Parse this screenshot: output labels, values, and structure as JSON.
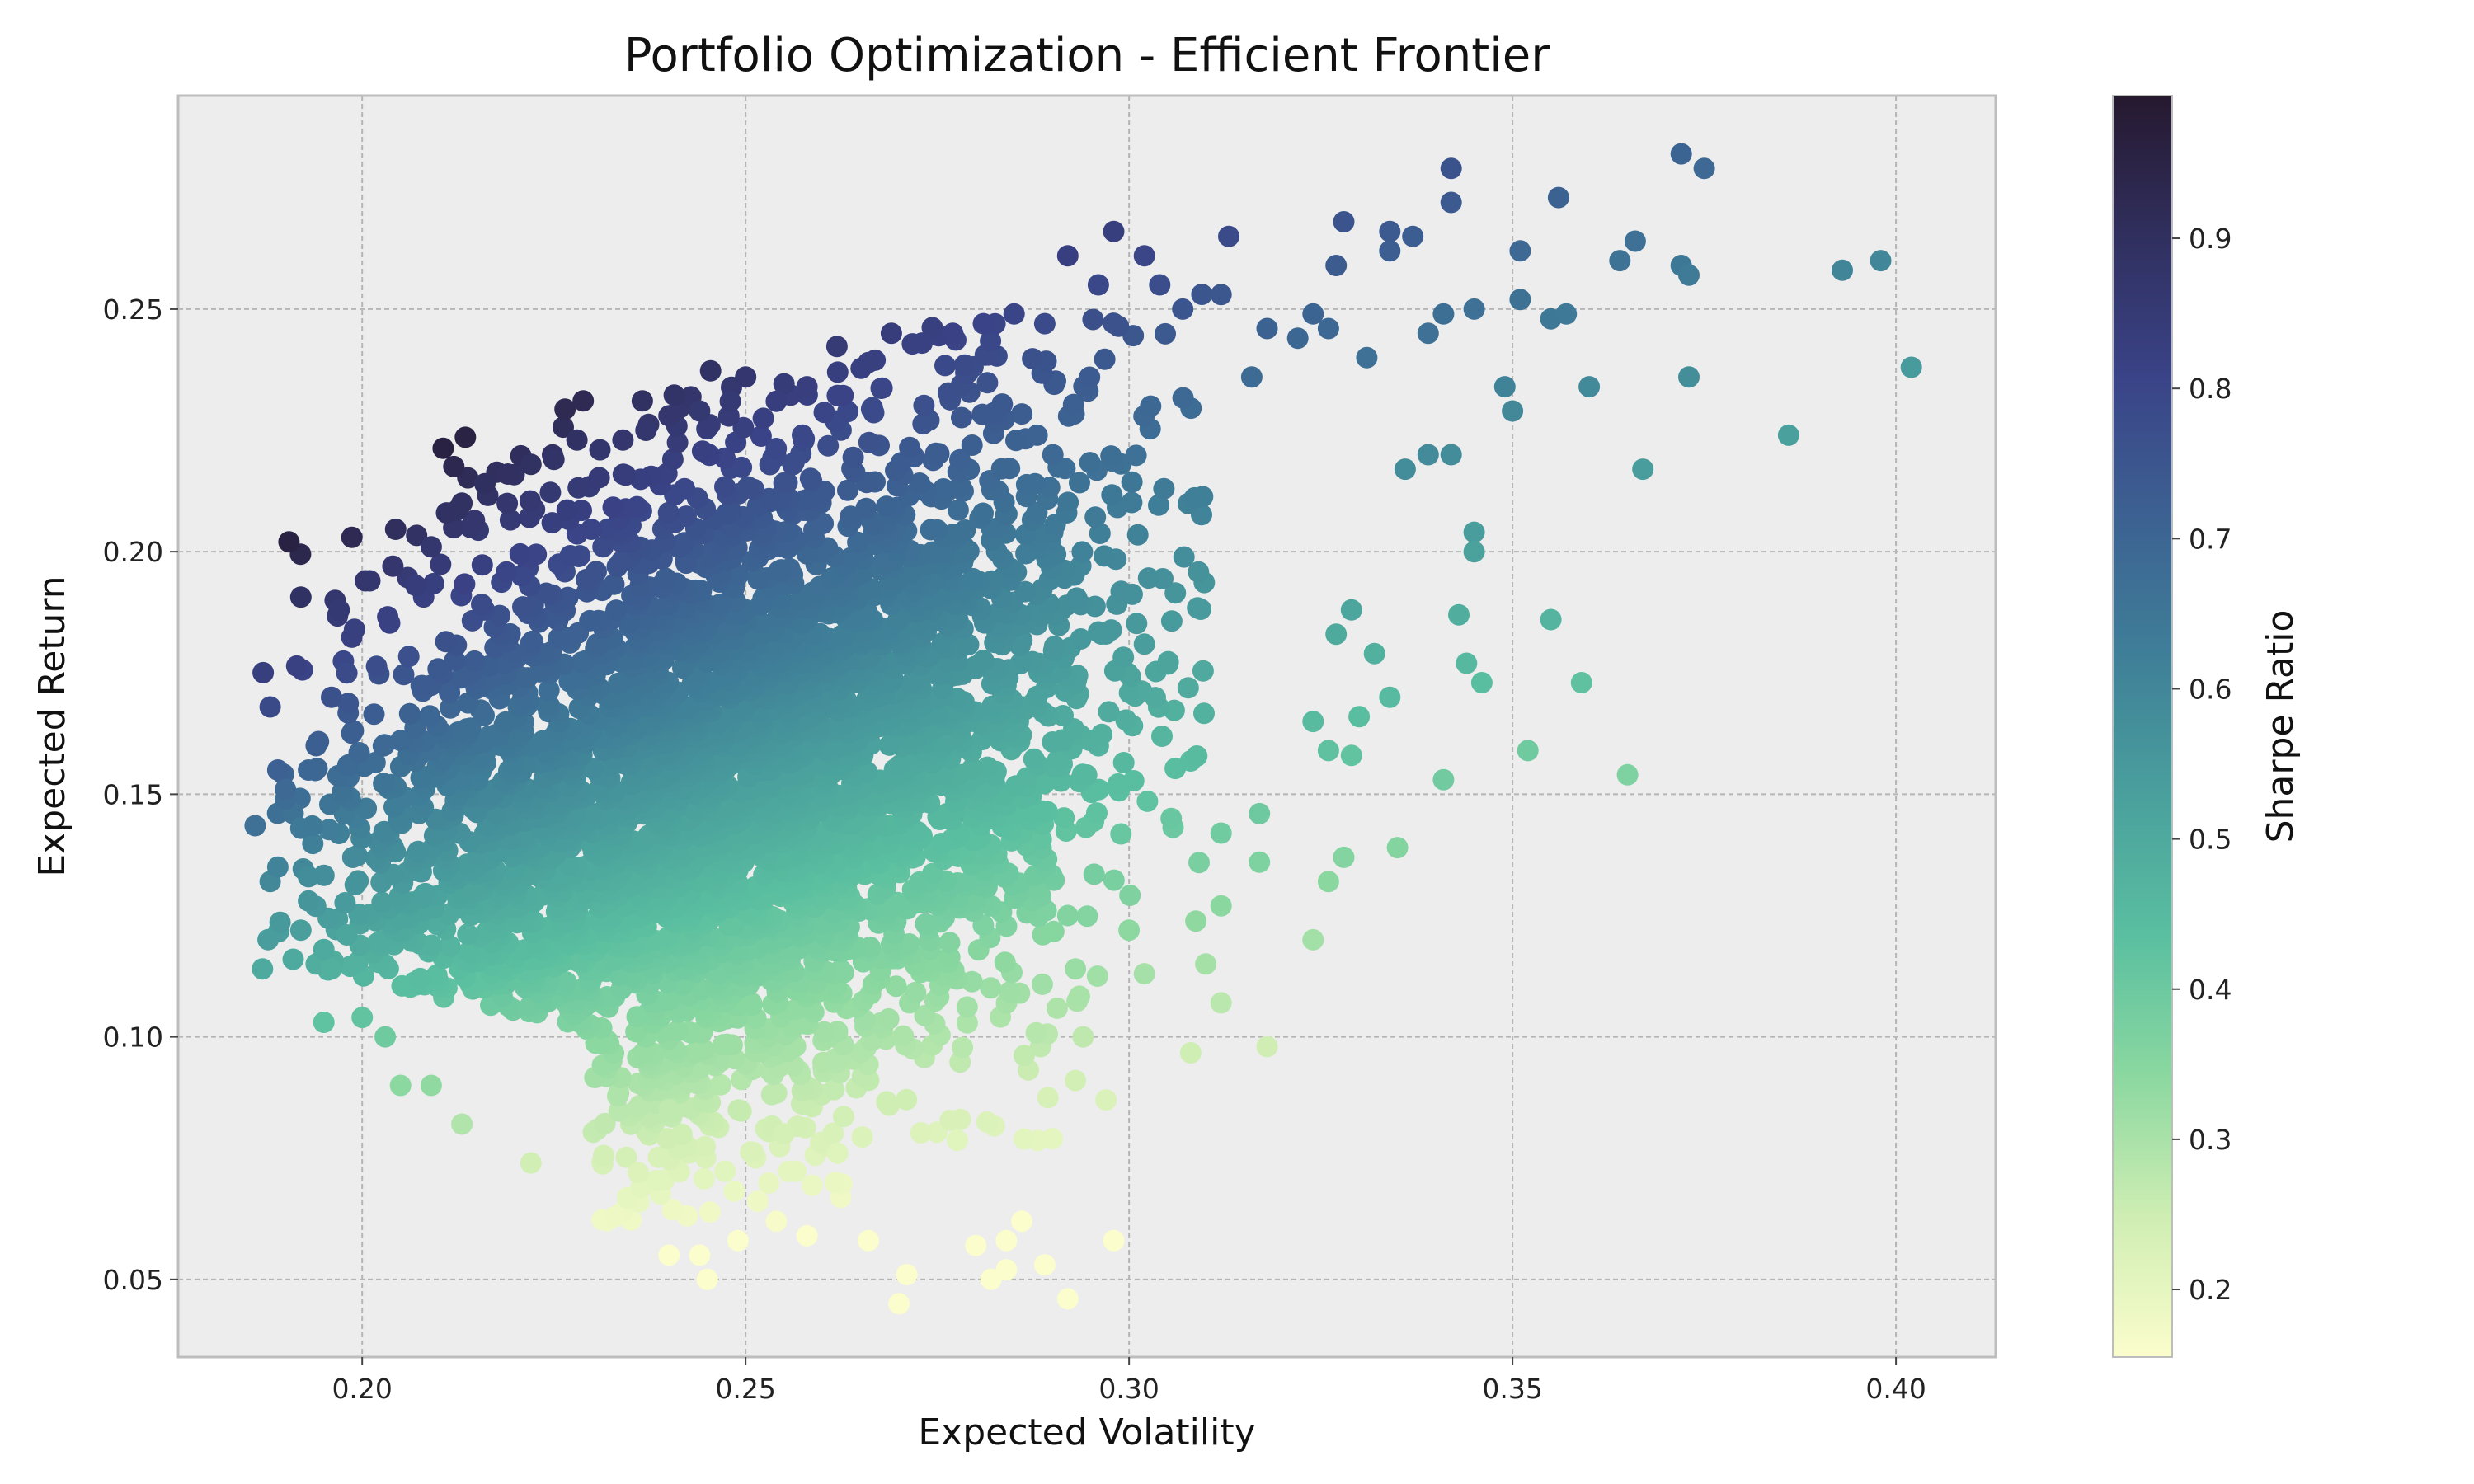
{
  "chart_data": {
    "type": "scatter",
    "title": "Portfolio Optimization - Efficient Frontier",
    "xlabel": "Expected Volatility",
    "ylabel": "Expected Return",
    "xlim": [
      0.176,
      0.413
    ],
    "ylim": [
      0.034,
      0.294
    ],
    "xticks": [
      0.2,
      0.25,
      0.3,
      0.35,
      0.4
    ],
    "xtick_labels": [
      "0.20",
      "0.25",
      "0.30",
      "0.35",
      "0.40"
    ],
    "yticks": [
      0.05,
      0.1,
      0.15,
      0.2,
      0.25
    ],
    "ytick_labels": [
      "0.05",
      "0.10",
      "0.15",
      "0.20",
      "0.25"
    ],
    "grid": true,
    "colorbar": {
      "label": "Sharpe Ratio",
      "range": [
        0.155,
        0.995
      ],
      "ticks": [
        0.2,
        0.3,
        0.4,
        0.5,
        0.6,
        0.7,
        0.8,
        0.9
      ],
      "tick_labels": [
        "0.2",
        "0.3",
        "0.4",
        "0.5",
        "0.6",
        "0.7",
        "0.8",
        "0.9"
      ],
      "colormap_stops": [
        "#fbfdcc",
        "#cfeeb3",
        "#8bd8a0",
        "#5abfa0",
        "#4aa09d",
        "#3f7f98",
        "#3c6192",
        "#3a4387",
        "#302f5e",
        "#26192f"
      ]
    },
    "series": [
      {
        "values": [
          [
            0.187,
            0.114
          ],
          [
            0.188,
            0.132
          ],
          [
            0.189,
            0.135
          ],
          [
            0.188,
            0.168
          ],
          [
            0.189,
            0.155
          ],
          [
            0.191,
            0.116
          ],
          [
            0.192,
            0.122
          ],
          [
            0.193,
            0.133
          ],
          [
            0.191,
            0.146
          ],
          [
            0.195,
            0.103
          ],
          [
            0.194,
            0.115
          ],
          [
            0.197,
            0.188
          ],
          [
            0.199,
            0.184
          ],
          [
            0.201,
            0.194
          ],
          [
            0.204,
            0.197
          ],
          [
            0.207,
            0.193
          ],
          [
            0.209,
            0.201
          ],
          [
            0.211,
            0.208
          ],
          [
            0.213,
            0.21
          ],
          [
            0.216,
            0.214
          ],
          [
            0.219,
            0.216
          ],
          [
            0.222,
            0.218
          ],
          [
            0.225,
            0.219
          ],
          [
            0.228,
            0.223
          ],
          [
            0.231,
            0.221
          ],
          [
            0.234,
            0.223
          ],
          [
            0.237,
            0.225
          ],
          [
            0.24,
            0.228
          ],
          [
            0.244,
            0.229
          ],
          [
            0.248,
            0.231
          ],
          [
            0.25,
            0.236
          ],
          [
            0.254,
            0.231
          ],
          [
            0.258,
            0.234
          ],
          [
            0.262,
            0.237
          ],
          [
            0.266,
            0.239
          ],
          [
            0.269,
            0.245
          ],
          [
            0.273,
            0.243
          ],
          [
            0.277,
            0.245
          ],
          [
            0.281,
            0.247
          ],
          [
            0.285,
            0.249
          ],
          [
            0.289,
            0.247
          ],
          [
            0.292,
            0.261
          ],
          [
            0.296,
            0.255
          ],
          [
            0.298,
            0.266
          ],
          [
            0.302,
            0.261
          ],
          [
            0.304,
            0.255
          ],
          [
            0.307,
            0.25
          ],
          [
            0.313,
            0.265
          ],
          [
            0.312,
            0.253
          ],
          [
            0.316,
            0.236
          ],
          [
            0.318,
            0.246
          ],
          [
            0.322,
            0.244
          ],
          [
            0.324,
            0.249
          ],
          [
            0.326,
            0.246
          ],
          [
            0.328,
            0.268
          ],
          [
            0.327,
            0.259
          ],
          [
            0.331,
            0.24
          ],
          [
            0.334,
            0.266
          ],
          [
            0.334,
            0.262
          ],
          [
            0.337,
            0.265
          ],
          [
            0.339,
            0.245
          ],
          [
            0.342,
            0.279
          ],
          [
            0.342,
            0.272
          ],
          [
            0.341,
            0.249
          ],
          [
            0.345,
            0.25
          ],
          [
            0.351,
            0.262
          ],
          [
            0.351,
            0.252
          ],
          [
            0.356,
            0.273
          ],
          [
            0.355,
            0.248
          ],
          [
            0.357,
            0.249
          ],
          [
            0.364,
            0.26
          ],
          [
            0.366,
            0.264
          ],
          [
            0.372,
            0.282
          ],
          [
            0.375,
            0.279
          ],
          [
            0.372,
            0.259
          ],
          [
            0.373,
            0.257
          ],
          [
            0.393,
            0.258
          ],
          [
            0.398,
            0.26
          ],
          [
            0.402,
            0.238
          ],
          [
            0.373,
            0.236
          ],
          [
            0.36,
            0.234
          ],
          [
            0.349,
            0.234
          ],
          [
            0.35,
            0.229
          ],
          [
            0.386,
            0.224
          ],
          [
            0.367,
            0.217
          ],
          [
            0.339,
            0.22
          ],
          [
            0.342,
            0.22
          ],
          [
            0.336,
            0.217
          ],
          [
            0.345,
            0.204
          ],
          [
            0.345,
            0.2
          ],
          [
            0.343,
            0.187
          ],
          [
            0.355,
            0.186
          ],
          [
            0.344,
            0.177
          ],
          [
            0.346,
            0.173
          ],
          [
            0.359,
            0.173
          ],
          [
            0.341,
            0.153
          ],
          [
            0.352,
            0.159
          ],
          [
            0.365,
            0.154
          ],
          [
            0.334,
            0.17
          ],
          [
            0.33,
            0.166
          ],
          [
            0.329,
            0.188
          ],
          [
            0.332,
            0.179
          ],
          [
            0.327,
            0.183
          ],
          [
            0.329,
            0.158
          ],
          [
            0.326,
            0.159
          ],
          [
            0.324,
            0.165
          ],
          [
            0.335,
            0.139
          ],
          [
            0.328,
            0.137
          ],
          [
            0.326,
            0.132
          ],
          [
            0.324,
            0.12
          ],
          [
            0.317,
            0.146
          ],
          [
            0.317,
            0.136
          ],
          [
            0.318,
            0.098
          ],
          [
            0.312,
            0.107
          ],
          [
            0.31,
            0.115
          ],
          [
            0.312,
            0.142
          ],
          [
            0.312,
            0.127
          ],
          [
            0.302,
            0.113
          ],
          [
            0.3,
            0.122
          ],
          [
            0.297,
            0.087
          ],
          [
            0.294,
            0.1
          ],
          [
            0.293,
            0.091
          ],
          [
            0.292,
            0.125
          ],
          [
            0.293,
            0.114
          ],
          [
            0.29,
            0.079
          ],
          [
            0.289,
            0.053
          ],
          [
            0.292,
            0.046
          ],
          [
            0.298,
            0.058
          ],
          [
            0.286,
            0.062
          ],
          [
            0.284,
            0.058
          ],
          [
            0.282,
            0.05
          ],
          [
            0.284,
            0.052
          ],
          [
            0.28,
            0.057
          ],
          [
            0.271,
            0.051
          ],
          [
            0.27,
            0.045
          ],
          [
            0.266,
            0.058
          ],
          [
            0.258,
            0.059
          ],
          [
            0.254,
            0.062
          ],
          [
            0.249,
            0.058
          ],
          [
            0.245,
            0.05
          ],
          [
            0.244,
            0.055
          ],
          [
            0.24,
            0.055
          ],
          [
            0.233,
            0.063
          ],
          [
            0.222,
            0.074
          ],
          [
            0.213,
            0.082
          ],
          [
            0.209,
            0.09
          ],
          [
            0.205,
            0.09
          ],
          [
            0.203,
            0.1
          ],
          [
            0.196,
            0.114
          ],
          [
            0.2,
            0.104
          ],
          [
            0.198,
            0.121
          ],
          [
            0.195,
            0.118
          ],
          [
            0.193,
            0.128
          ],
          [
            0.19,
            0.149
          ],
          [
            0.19,
            0.151
          ],
          [
            0.192,
            0.143
          ],
          [
            0.194,
            0.16
          ],
          [
            0.196,
            0.17
          ],
          [
            0.198,
            0.175
          ],
          [
            0.193,
            0.155
          ],
          [
            0.24,
            0.085
          ],
          [
            0.236,
            0.072
          ],
          [
            0.255,
            0.08
          ],
          [
            0.262,
            0.076
          ],
          [
            0.278,
            0.083
          ]
        ]
      }
    ]
  }
}
